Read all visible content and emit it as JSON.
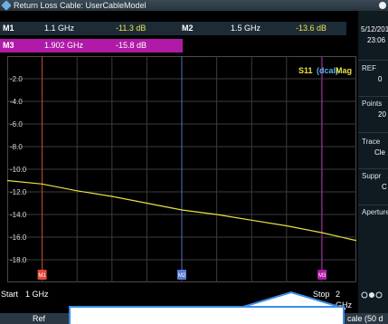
{
  "title": "Return Loss  Cable: UserCableModel",
  "marker_row1": {
    "m1_label": "M1",
    "m1_freq": "1.1 GHz",
    "m1_value": "-11.3 dB",
    "m2_label": "M2",
    "m2_freq": "1.5 GHz",
    "m2_value": "-13.6 dB"
  },
  "marker_row2": {
    "m3_label": "M3",
    "m3_freq": "1.902 GHz",
    "m3_value": "-15.8 dB"
  },
  "trace_label": {
    "name": "S11",
    "mode": "(dcal)",
    "format": "Mag"
  },
  "chart_data": {
    "type": "line",
    "y_tick_labels": [
      "-2.0",
      "-4.0",
      "-6.0",
      "-8.0",
      "-10.0",
      "-12.0",
      "-14.0",
      "-16.0",
      "-18.0"
    ],
    "ylim": [
      -20,
      0
    ],
    "xlim": [
      1.0,
      2.0
    ],
    "x_unit": "GHz",
    "y_unit": "dB",
    "grid": true,
    "series": [
      {
        "color": "#e8e246",
        "x": [
          1.0,
          1.1,
          1.2,
          1.3,
          1.4,
          1.5,
          1.6,
          1.7,
          1.8,
          1.9,
          2.0
        ],
        "y": [
          -11.0,
          -11.3,
          -11.9,
          -12.4,
          -13.0,
          -13.6,
          -14.0,
          -14.5,
          -15.0,
          -15.6,
          -16.3
        ]
      }
    ],
    "markers": [
      {
        "label": "M1",
        "x": 1.1,
        "color": "#e04a3a"
      },
      {
        "label": "M2",
        "x": 1.5,
        "color": "#5a7bd6"
      },
      {
        "label": "M3",
        "x": 1.902,
        "color": "#b01aa6"
      }
    ]
  },
  "start_label": "Start",
  "start_value": "1 GHz",
  "stop_label": "Stop",
  "stop_value": "2 GHz",
  "sidebar": {
    "date": "5/12/201",
    "time": "23:06",
    "ref_label": "REF",
    "ref_value": "0",
    "points_label": "Points",
    "points_value": "20",
    "trace_label": "Trace",
    "trace_value": "Cle",
    "suppr_label": "Suppr",
    "suppr_value": "C",
    "aperture_label": "Aperture *"
  },
  "bottom": {
    "ref_button": "Ref",
    "scale_text": "cale (50 d"
  },
  "colors": {
    "accent": "#3a8ee6",
    "trace": "#e8e246",
    "marker_m3": "#b01aa6"
  }
}
